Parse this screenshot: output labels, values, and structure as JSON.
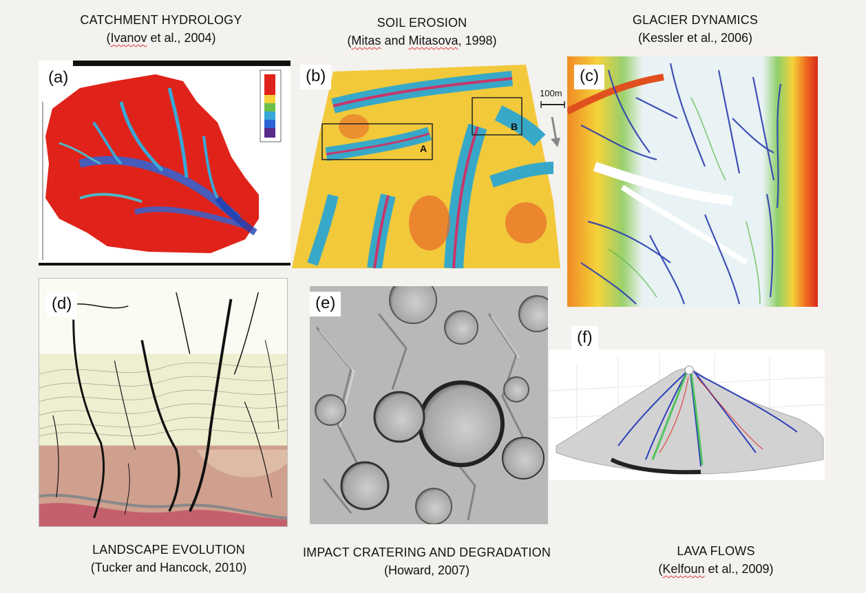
{
  "captions": {
    "a": {
      "title": "CATCHMENT HYDROLOGY",
      "author": "Ivanov",
      "rest": " et al., 2004)"
    },
    "b": {
      "title": "SOIL EROSION",
      "author": "Mitas",
      "mid": " and ",
      "author2": "Mitasova",
      "rest": ", 1998)"
    },
    "c": {
      "title": "GLACIER DYNAMICS",
      "citation": "(Kessler et al., 2006)"
    },
    "d": {
      "title": "LANDSCAPE EVOLUTION",
      "citation": "(Tucker and Hancock, 2010)"
    },
    "e": {
      "title": "IMPACT CRATERING AND DEGRADATION",
      "citation": "(Howard, 2007)"
    },
    "f": {
      "title": "LAVA FLOWS",
      "author": "Kelfoun",
      "rest": " et al., 2009)"
    }
  },
  "labels": {
    "a": "(a)",
    "b": "(b)",
    "c": "(c)",
    "d": "(d)",
    "e": "(e)",
    "f": "(f)"
  },
  "panel_b": {
    "box_a": "A",
    "box_b": "B",
    "scale": "100m"
  },
  "colors": {
    "background": "#f4f2ee",
    "hot": "#e8281c",
    "cool": "#2c6cd6",
    "mid": "#f5d23a"
  }
}
